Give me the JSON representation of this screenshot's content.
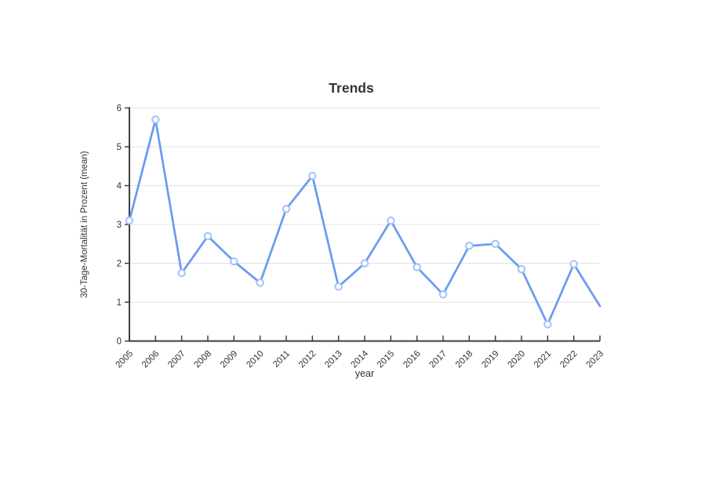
{
  "chart_data": {
    "type": "line",
    "title": "Trends",
    "xlabel": "year",
    "ylabel": "30-Tage-Mortalität in Prozent (mean)",
    "categories": [
      "2005",
      "2006",
      "2007",
      "2008",
      "2009",
      "2010",
      "2011",
      "2012",
      "2013",
      "2014",
      "2015",
      "2016",
      "2017",
      "2018",
      "2019",
      "2020",
      "2021",
      "2022",
      "2023"
    ],
    "values": [
      3.1,
      5.7,
      1.75,
      2.7,
      2.05,
      1.5,
      3.4,
      4.25,
      1.4,
      2.0,
      3.1,
      1.9,
      1.2,
      2.45,
      2.5,
      1.85,
      0.43,
      1.98,
      0.9
    ],
    "ylim": [
      0,
      6
    ],
    "yticks": [
      0,
      1,
      2,
      3,
      4,
      5,
      6
    ],
    "grid": true,
    "legend_position": "none",
    "marker_on_last_point": false,
    "x_tick_label_rotation_deg": -45,
    "colors": {
      "line": "#6b9bf2",
      "marker_stroke": "#a3c1f7",
      "marker_fill": "#ffffff",
      "grid": "#e3e3e3",
      "axis": "#3d3d3d",
      "text": "#333333"
    }
  }
}
